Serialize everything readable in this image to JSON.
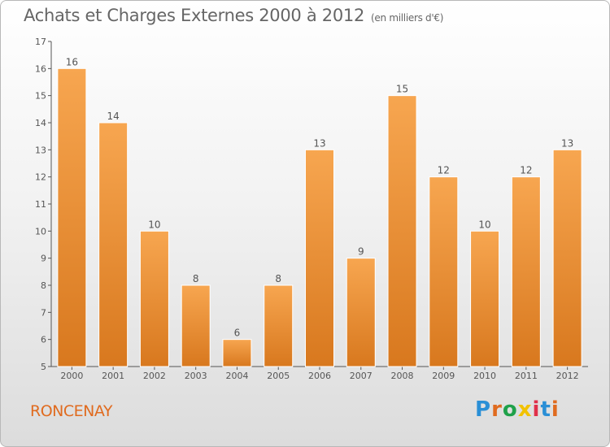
{
  "header": {
    "title": "Achats et Charges Externes 2000 à 2012",
    "unit": "(en milliers d'€)"
  },
  "commune": "RONCENAY",
  "logo": {
    "text": "Proxiti",
    "letter_colors": [
      "#2a8fd6",
      "#e06b1f",
      "#1fa14a",
      "#f2c200",
      "#e0304a",
      "#2a8fd6",
      "#e06b1f"
    ]
  },
  "colors": {
    "bar_top": "#f7a650",
    "bar_bottom": "#d8781e",
    "axis": "#555555",
    "text": "#555555"
  },
  "chart_data": {
    "type": "bar",
    "title": "Achats et Charges Externes 2000 à 2012",
    "subtitle": "(en milliers d'€)",
    "categories": [
      "2000",
      "2001",
      "2002",
      "2003",
      "2004",
      "2005",
      "2006",
      "2007",
      "2008",
      "2009",
      "2010",
      "2011",
      "2012"
    ],
    "values": [
      16,
      14,
      10,
      8,
      6,
      8,
      13,
      9,
      15,
      12,
      10,
      12,
      13
    ],
    "ylim": [
      5,
      17
    ],
    "yticks": [
      5,
      6,
      7,
      8,
      9,
      10,
      11,
      12,
      13,
      14,
      15,
      16,
      17
    ],
    "xlabel": "",
    "ylabel": "",
    "grid": false,
    "data_labels": true
  }
}
